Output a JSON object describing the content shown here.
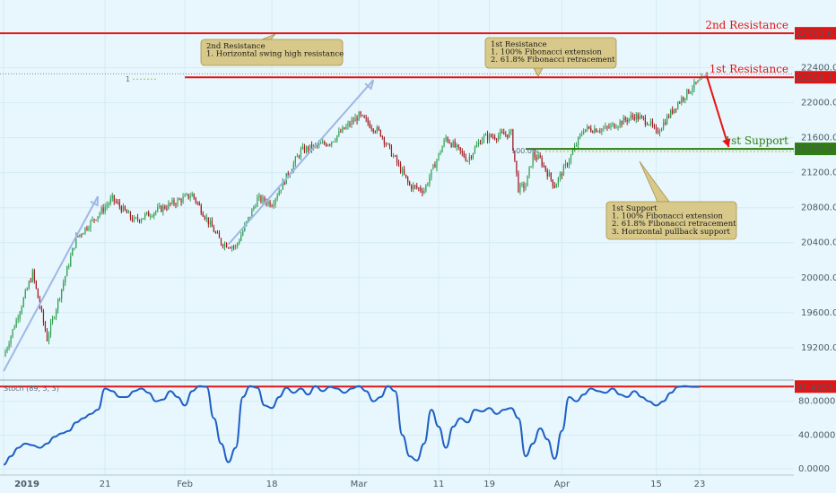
{
  "colors": {
    "background": "#e8f7fd",
    "up_candle": "#2e9e4f",
    "down_candle": "#a3191f",
    "resistance": "#e31414",
    "support": "#2e7d0e",
    "trend_arrow": "#9fb7e6",
    "stoch_line": "#1f5fc4",
    "note_fill": "#d8c98a",
    "note_border": "#a8904a",
    "price_tag_text": "#ffffff"
  },
  "chart_data": {
    "type": "candlestick",
    "price_axis": {
      "range": [
        18850,
        23000
      ],
      "ticks": [
        19200,
        19600,
        20000,
        20400,
        20800,
        21200,
        21600,
        22000,
        22400
      ]
    },
    "x_axis": {
      "tick_labels": [
        "2019",
        "21",
        "Feb",
        "18",
        "Mar",
        "11",
        "19",
        "Apr",
        "15",
        "23"
      ],
      "tick_sessions": [
        0,
        14,
        25,
        37,
        49,
        60,
        67,
        77,
        90,
        96
      ]
    },
    "sessions": 110,
    "key_closes": [
      [
        0,
        19100
      ],
      [
        4,
        20050
      ],
      [
        6,
        19300
      ],
      [
        10,
        20450
      ],
      [
        15,
        20900
      ],
      [
        18,
        20650
      ],
      [
        22,
        20800
      ],
      [
        26,
        20950
      ],
      [
        30,
        20400
      ],
      [
        32,
        20350
      ],
      [
        35,
        20900
      ],
      [
        37,
        20850
      ],
      [
        41,
        21450
      ],
      [
        45,
        21550
      ],
      [
        49,
        21850
      ],
      [
        52,
        21650
      ],
      [
        56,
        21050
      ],
      [
        58,
        21000
      ],
      [
        61,
        21600
      ],
      [
        64,
        21350
      ],
      [
        66,
        21600
      ],
      [
        68,
        21620
      ],
      [
        70,
        21650
      ],
      [
        71,
        21020
      ],
      [
        72,
        21050
      ],
      [
        73,
        21400
      ],
      [
        74,
        21350
      ],
      [
        76,
        21050
      ],
      [
        78,
        21350
      ],
      [
        80,
        21700
      ],
      [
        83,
        21700
      ],
      [
        87,
        21850
      ],
      [
        89,
        21780
      ],
      [
        90,
        21650
      ],
      [
        93,
        22000
      ],
      [
        95,
        22180
      ],
      [
        97,
        22300
      ]
    ],
    "levels": [
      {
        "name": "2nd Resistance",
        "value": 22793.6,
        "label": "22793.6"
      },
      {
        "name": "1st Resistance",
        "value": 22290.7,
        "label": "22290.7"
      },
      {
        "name": "1st Support",
        "value": 21472.4,
        "label": "21472.4"
      }
    ],
    "fib_markers": {
      "resistance_tag": "1",
      "support_tag": "100.0%"
    },
    "projection": {
      "from": [
        97,
        22300
      ],
      "to": [
        100,
        21472.4
      ]
    },
    "trend_arrows": [
      {
        "from": [
          0,
          18930
        ],
        "to": [
          13,
          20930
        ]
      },
      {
        "from": [
          31,
          20380
        ],
        "to": [
          51,
          22260
        ]
      }
    ],
    "annotations": [
      {
        "lines": [
          "2nd Resistance",
          "1. Horizontal swing high resistance"
        ]
      },
      {
        "lines": [
          "1st Resistance",
          "1. 100% Fibonacci extension",
          "2. 61.8% Fibonacci retracement"
        ]
      },
      {
        "lines": [
          "1st Support",
          "1. 100% Fibonacci extension",
          "2. 61.8% Fibonacci retracement",
          "3. Horizontal pullback support"
        ]
      }
    ],
    "stochastic": {
      "label": "Stoch (89, 5, 3)",
      "range": [
        -3,
        103
      ],
      "ticks": [
        0,
        40,
        80
      ],
      "tick_labels": [
        "0.0000",
        "40.0000",
        "80.0000"
      ],
      "level": {
        "value": 97.4253,
        "label": "97.4253"
      },
      "points": [
        [
          0,
          5
        ],
        [
          1,
          15
        ],
        [
          2,
          25
        ],
        [
          3,
          30
        ],
        [
          4,
          28
        ],
        [
          5,
          25
        ],
        [
          6,
          30
        ],
        [
          7,
          38
        ],
        [
          8,
          42
        ],
        [
          9,
          45
        ],
        [
          10,
          55
        ],
        [
          11,
          60
        ],
        [
          12,
          65
        ],
        [
          13,
          70
        ],
        [
          14,
          95
        ],
        [
          15,
          92
        ],
        [
          16,
          85
        ],
        [
          17,
          85
        ],
        [
          18,
          92
        ],
        [
          19,
          95
        ],
        [
          20,
          90
        ],
        [
          21,
          80
        ],
        [
          22,
          82
        ],
        [
          23,
          92
        ],
        [
          24,
          85
        ],
        [
          25,
          75
        ],
        [
          26,
          92
        ],
        [
          27,
          98
        ],
        [
          28,
          97
        ],
        [
          29,
          60
        ],
        [
          30,
          30
        ],
        [
          31,
          8
        ],
        [
          32,
          25
        ],
        [
          33,
          85
        ],
        [
          34,
          98
        ],
        [
          35,
          96
        ],
        [
          36,
          75
        ],
        [
          37,
          72
        ],
        [
          38,
          85
        ],
        [
          39,
          96
        ],
        [
          40,
          90
        ],
        [
          41,
          95
        ],
        [
          42,
          88
        ],
        [
          43,
          98
        ],
        [
          44,
          92
        ],
        [
          45,
          97
        ],
        [
          46,
          95
        ],
        [
          47,
          90
        ],
        [
          48,
          95
        ],
        [
          49,
          98
        ],
        [
          50,
          92
        ],
        [
          51,
          80
        ],
        [
          52,
          85
        ],
        [
          53,
          98
        ],
        [
          54,
          92
        ],
        [
          55,
          40
        ],
        [
          56,
          15
        ],
        [
          57,
          10
        ],
        [
          58,
          30
        ],
        [
          59,
          70
        ],
        [
          60,
          50
        ],
        [
          61,
          25
        ],
        [
          62,
          50
        ],
        [
          63,
          60
        ],
        [
          64,
          55
        ],
        [
          65,
          70
        ],
        [
          66,
          68
        ],
        [
          67,
          72
        ],
        [
          68,
          65
        ],
        [
          69,
          70
        ],
        [
          70,
          72
        ],
        [
          71,
          60
        ],
        [
          72,
          15
        ],
        [
          73,
          30
        ],
        [
          74,
          48
        ],
        [
          75,
          35
        ],
        [
          76,
          12
        ],
        [
          77,
          45
        ],
        [
          78,
          85
        ],
        [
          79,
          80
        ],
        [
          80,
          88
        ],
        [
          81,
          95
        ],
        [
          82,
          92
        ],
        [
          83,
          90
        ],
        [
          84,
          95
        ],
        [
          85,
          88
        ],
        [
          86,
          85
        ],
        [
          87,
          92
        ],
        [
          88,
          85
        ],
        [
          89,
          80
        ],
        [
          90,
          75
        ],
        [
          91,
          80
        ],
        [
          92,
          90
        ],
        [
          93,
          97
        ],
        [
          94,
          98
        ],
        [
          95,
          97
        ],
        [
          96,
          97
        ]
      ]
    }
  }
}
